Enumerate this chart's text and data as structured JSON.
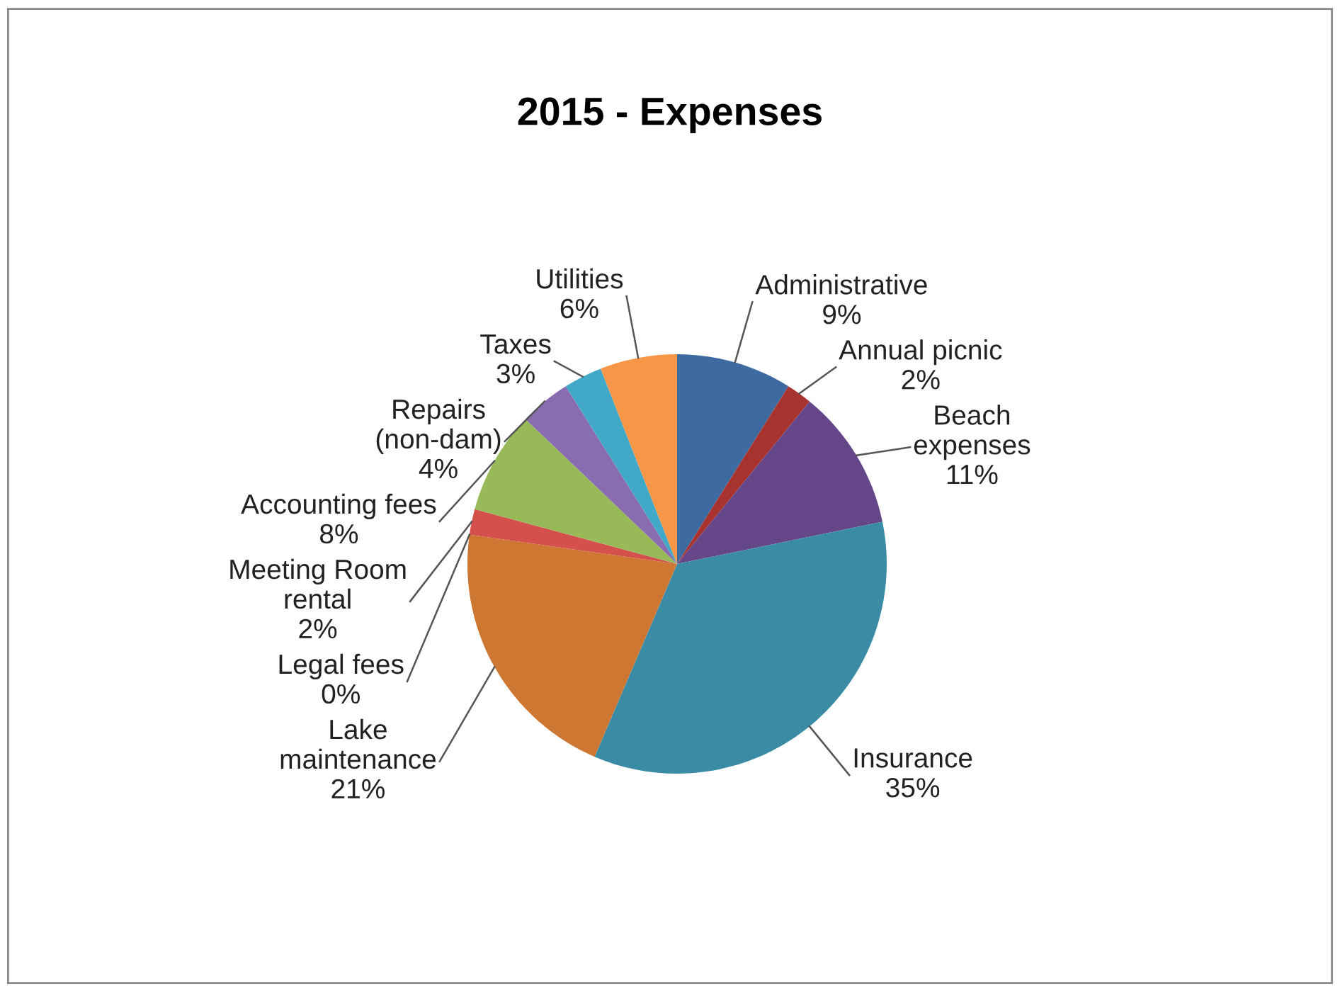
{
  "chart_data": {
    "type": "pie",
    "title": "2015 - Expenses",
    "categories": [
      "Administrative",
      "Annual picnic",
      "Beach\nexpenses",
      "Insurance",
      "Lake\nmaintenance",
      "Legal fees",
      "Meeting Room\nrental",
      "Accounting fees",
      "Repairs\n(non-dam)",
      "Taxes",
      "Utilities"
    ],
    "values": [
      9,
      2,
      11,
      35,
      21,
      0,
      2,
      8,
      4,
      3,
      6
    ],
    "value_labels": [
      "9%",
      "2%",
      "11%",
      "35%",
      "21%",
      "0%",
      "2%",
      "8%",
      "4%",
      "3%",
      "6%"
    ],
    "colors": [
      "#3d6aa0",
      "#a8322e",
      "#654789",
      "#3a8ba5",
      "#cd7733",
      "#8e3a3a",
      "#d4504c",
      "#97b957",
      "#8a6db0",
      "#41a8c8",
      "#f79646"
    ],
    "legend": false
  }
}
